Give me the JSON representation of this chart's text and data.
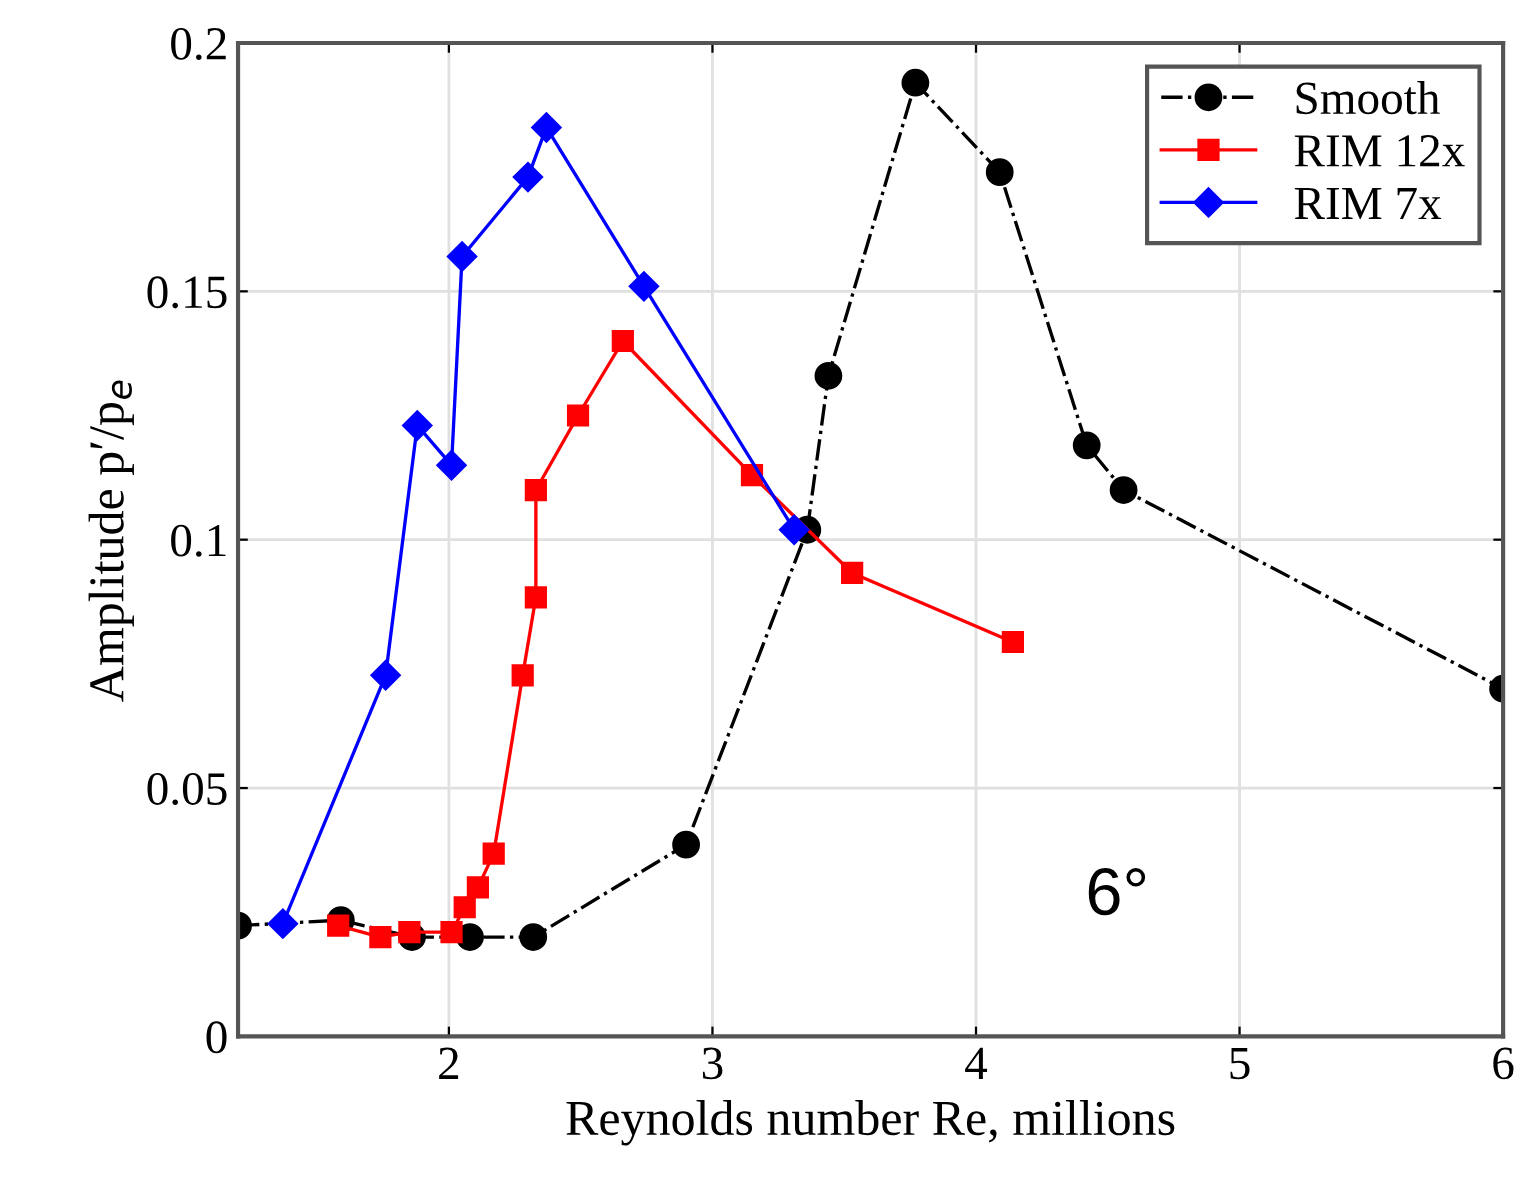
{
  "chart_data": {
    "type": "line",
    "xlabel": "Reynolds number Re, millions",
    "ylabel": "Amplitude p′/p$_{e}$",
    "xlim": [
      1.2,
      6
    ],
    "xticks": [
      {
        "value": 1.2,
        "label": null
      },
      2,
      3,
      4,
      5,
      6
    ],
    "ylim": [
      0,
      0.2
    ],
    "yticks": [
      0,
      0.05,
      0.1,
      0.15,
      0.2
    ],
    "grid": true,
    "legend": "top right",
    "annotations": [
      "6°"
    ],
    "series": [
      {
        "name": "Smooth",
        "color": "#000000",
        "marker": "circle",
        "line_style": "dashdot",
        "x": [
          1.2,
          1.59,
          1.86,
          2.08,
          2.32,
          2.9,
          3.36,
          3.44,
          3.77,
          4.09,
          4.42,
          4.56,
          6.0
        ],
        "values": [
          0.0223,
          0.0234,
          0.02,
          0.02,
          0.02,
          0.0386,
          0.102,
          0.133,
          0.192,
          0.174,
          0.119,
          0.11,
          0.07
        ]
      },
      {
        "name": "RIM 12x",
        "color": "#ff0000",
        "marker": "square",
        "line_style": "solid",
        "x": [
          1.58,
          1.74,
          1.85,
          2.01,
          2.06,
          2.11,
          2.17,
          2.28,
          2.33,
          2.33,
          2.49,
          2.66,
          3.15,
          3.53,
          4.14
        ],
        "values": [
          0.0223,
          0.02,
          0.021,
          0.021,
          0.026,
          0.03,
          0.0368,
          0.0727,
          0.0884,
          0.11,
          0.125,
          0.14,
          0.113,
          0.0933,
          0.0794
        ]
      },
      {
        "name": "RIM 7x",
        "color": "#0000ff",
        "marker": "diamond",
        "line_style": "solid",
        "x": [
          1.37,
          1.76,
          1.88,
          2.01,
          2.05,
          2.3,
          2.37,
          2.74,
          3.31
        ],
        "values": [
          0.0227,
          0.0727,
          0.123,
          0.115,
          0.157,
          0.173,
          0.183,
          0.151,
          0.102
        ]
      }
    ]
  }
}
